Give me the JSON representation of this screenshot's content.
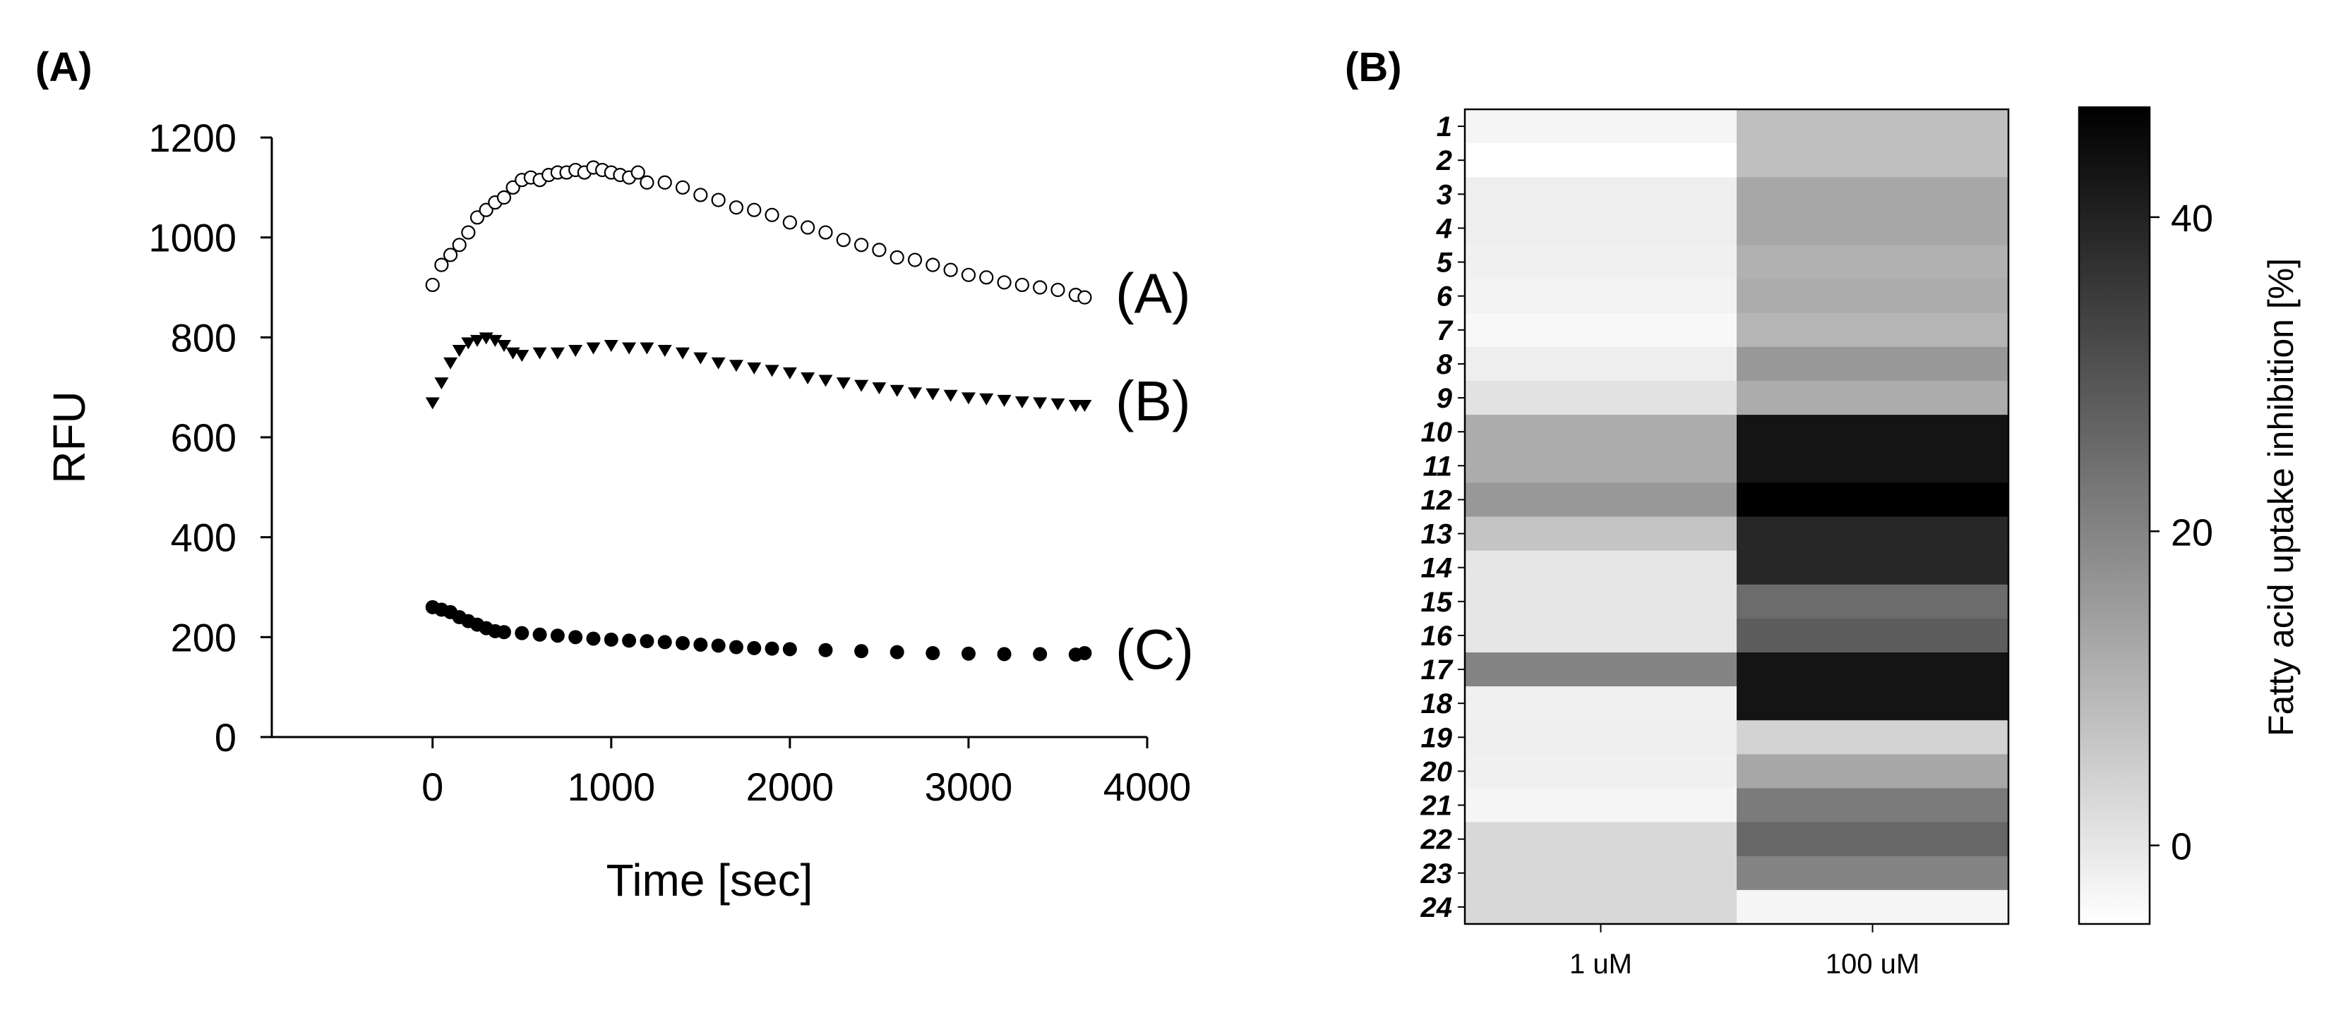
{
  "chart_data": [
    {
      "type": "scatter",
      "panel_label": "(A)",
      "xlabel": "Time [sec]",
      "ylabel": "RFU",
      "xlim": [
        -900,
        4000
      ],
      "ylim": [
        0,
        1200
      ],
      "xticks": [
        0,
        1000,
        2000,
        3000,
        4000
      ],
      "yticks": [
        0,
        200,
        400,
        600,
        800,
        1000,
        1200
      ],
      "series": [
        {
          "name": "(A)",
          "marker": "open-circle",
          "x": [
            0,
            50,
            100,
            150,
            200,
            250,
            300,
            350,
            400,
            450,
            500,
            550,
            600,
            650,
            700,
            750,
            800,
            850,
            900,
            950,
            1000,
            1050,
            1100,
            1150,
            1200,
            1300,
            1400,
            1500,
            1600,
            1700,
            1800,
            1900,
            2000,
            2100,
            2200,
            2300,
            2400,
            2500,
            2600,
            2700,
            2800,
            2900,
            3000,
            3100,
            3200,
            3300,
            3400,
            3500,
            3600,
            3650
          ],
          "y": [
            905,
            945,
            965,
            985,
            1010,
            1040,
            1055,
            1070,
            1080,
            1100,
            1115,
            1120,
            1115,
            1125,
            1130,
            1130,
            1135,
            1130,
            1140,
            1135,
            1130,
            1125,
            1120,
            1130,
            1110,
            1110,
            1100,
            1085,
            1075,
            1060,
            1055,
            1045,
            1030,
            1020,
            1010,
            995,
            985,
            975,
            960,
            955,
            945,
            935,
            925,
            920,
            910,
            905,
            900,
            895,
            885,
            880
          ]
        },
        {
          "name": "(B)",
          "marker": "filled-triangle-down",
          "x": [
            0,
            50,
            100,
            150,
            200,
            250,
            300,
            350,
            400,
            450,
            500,
            600,
            700,
            800,
            900,
            1000,
            1100,
            1200,
            1300,
            1400,
            1500,
            1600,
            1700,
            1800,
            1900,
            2000,
            2100,
            2200,
            2300,
            2400,
            2500,
            2600,
            2700,
            2800,
            2900,
            3000,
            3100,
            3200,
            3300,
            3400,
            3500,
            3600,
            3650
          ],
          "y": [
            670,
            710,
            750,
            775,
            790,
            795,
            800,
            795,
            785,
            770,
            765,
            770,
            770,
            775,
            780,
            785,
            780,
            780,
            775,
            770,
            760,
            750,
            745,
            740,
            735,
            730,
            720,
            715,
            710,
            705,
            700,
            695,
            690,
            688,
            685,
            680,
            678,
            675,
            672,
            670,
            668,
            665,
            665
          ]
        },
        {
          "name": "(C)",
          "marker": "filled-circle",
          "x": [
            0,
            50,
            100,
            150,
            200,
            250,
            300,
            350,
            400,
            500,
            600,
            700,
            800,
            900,
            1000,
            1100,
            1200,
            1300,
            1400,
            1500,
            1600,
            1700,
            1800,
            1900,
            2000,
            2200,
            2400,
            2600,
            2800,
            3000,
            3200,
            3400,
            3600,
            3650
          ],
          "y": [
            260,
            255,
            250,
            240,
            232,
            225,
            218,
            212,
            210,
            208,
            205,
            203,
            200,
            197,
            195,
            193,
            192,
            190,
            188,
            185,
            183,
            180,
            178,
            177,
            176,
            174,
            172,
            170,
            168,
            167,
            166,
            166,
            165,
            168
          ]
        }
      ]
    },
    {
      "type": "heatmap",
      "panel_label": "(B)",
      "rows": [
        "1",
        "2",
        "3",
        "4",
        "5",
        "6",
        "7",
        "8",
        "9",
        "10",
        "11",
        "12",
        "13",
        "14",
        "15",
        "16",
        "17",
        "18",
        "19",
        "20",
        "21",
        "22",
        "23",
        "24"
      ],
      "columns": [
        "1 uM",
        "100 uM"
      ],
      "values": [
        [
          -3,
          8
        ],
        [
          -5,
          8
        ],
        [
          -1.5,
          13
        ],
        [
          -1.5,
          13
        ],
        [
          -2,
          11
        ],
        [
          -2.5,
          12
        ],
        [
          -3.5,
          10
        ],
        [
          -1.5,
          16
        ],
        [
          1,
          12
        ],
        [
          12,
          43
        ],
        [
          12,
          43
        ],
        [
          16,
          47
        ],
        [
          7,
          39
        ],
        [
          0,
          39
        ],
        [
          0,
          25
        ],
        [
          0,
          28
        ],
        [
          20,
          43
        ],
        [
          -2,
          43
        ],
        [
          -1.5,
          4
        ],
        [
          -2,
          13
        ],
        [
          -3,
          22
        ],
        [
          3,
          26
        ],
        [
          3,
          20
        ],
        [
          3,
          -3
        ]
      ],
      "colorbar": {
        "title": "Fatty acid uptake inhibition [%]",
        "min": -5,
        "max": 47,
        "ticks": [
          0,
          20,
          40
        ]
      }
    }
  ]
}
